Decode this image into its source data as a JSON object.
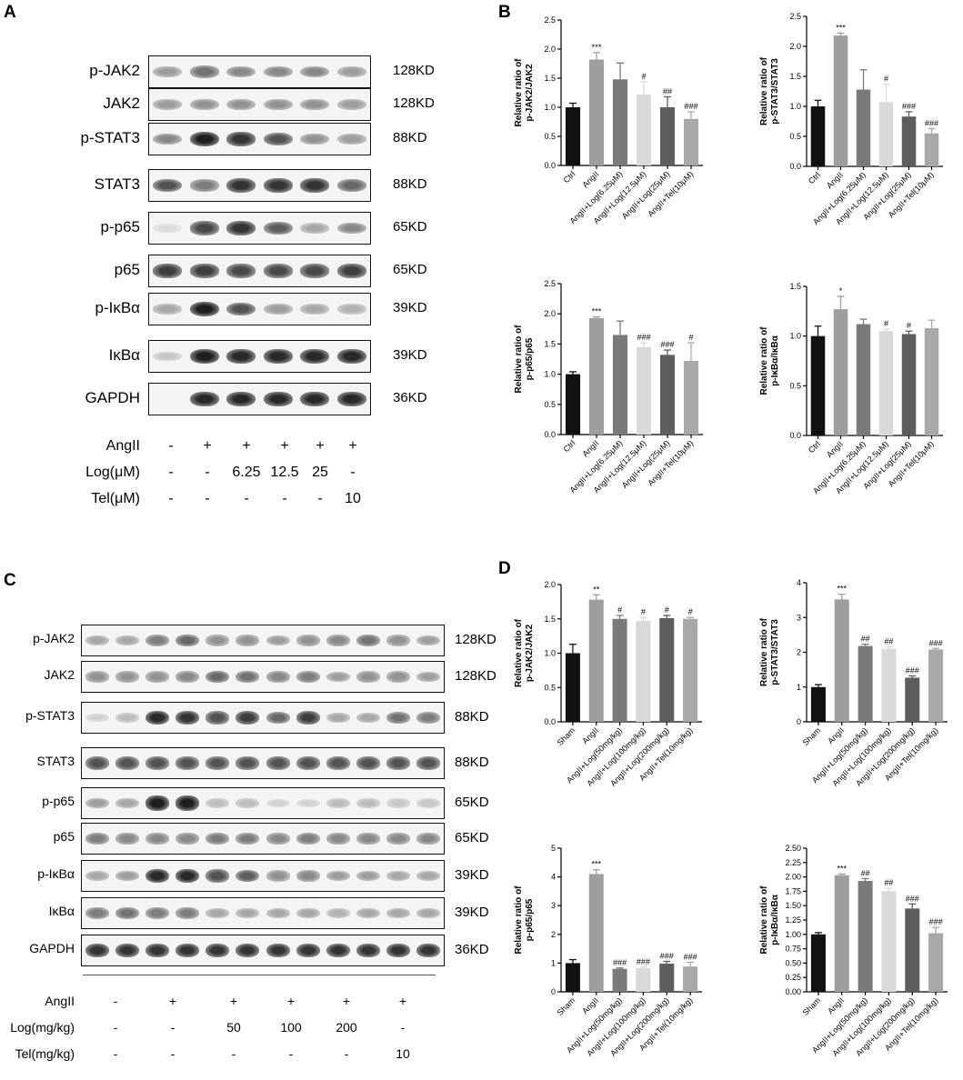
{
  "panels": {
    "A": "A",
    "B": "B",
    "C": "C",
    "D": "D"
  },
  "blotA": {
    "rows": [
      {
        "label": "p-JAK2",
        "kd": "128KD",
        "lanes": [
          0.35,
          0.55,
          0.45,
          0.45,
          0.45,
          0.35
        ]
      },
      {
        "label": "JAK2",
        "kd": "128KD",
        "lanes": [
          0.35,
          0.4,
          0.4,
          0.4,
          0.4,
          0.35
        ]
      },
      {
        "label": "p-STAT3",
        "kd": "88KD",
        "lanes": [
          0.45,
          0.95,
          0.85,
          0.7,
          0.4,
          0.35
        ]
      },
      {
        "label": "STAT3",
        "kd": "88KD",
        "lanes": [
          0.7,
          0.5,
          0.85,
          0.85,
          0.85,
          0.6
        ]
      },
      {
        "label": "p-p65",
        "kd": "65KD",
        "lanes": [
          0.05,
          0.75,
          0.85,
          0.65,
          0.3,
          0.45
        ]
      },
      {
        "label": "p65",
        "kd": "65KD",
        "lanes": [
          0.8,
          0.8,
          0.75,
          0.75,
          0.75,
          0.8
        ]
      },
      {
        "label": "p-IκBα",
        "kd": "39KD",
        "lanes": [
          0.3,
          0.95,
          0.7,
          0.35,
          0.3,
          0.25
        ]
      },
      {
        "label": "IκBα",
        "kd": "39KD",
        "lanes": [
          0.15,
          0.95,
          0.9,
          0.9,
          0.9,
          0.9
        ]
      },
      {
        "label": "GAPDH",
        "kd": "36KD",
        "lanes": [
          0,
          0.9,
          0.9,
          0.9,
          0.9,
          0.9
        ]
      }
    ],
    "conditions": [
      {
        "label": "AngII",
        "values": [
          "-",
          "+",
          "+",
          "+",
          "+",
          "+"
        ]
      },
      {
        "label": "Log(μM)",
        "values": [
          "-",
          "-",
          "6.25",
          "12.5",
          "25",
          "-"
        ]
      },
      {
        "label": "Tel(μM)",
        "values": [
          "-",
          "-",
          "-",
          "-",
          "-",
          "10"
        ]
      }
    ]
  },
  "blotC": {
    "rows": [
      {
        "label": "p-JAK2",
        "kd": "128KD",
        "lanes": [
          0.3,
          0.3,
          0.5,
          0.6,
          0.4,
          0.4,
          0.35,
          0.4,
          0.45,
          0.55,
          0.4,
          0.35
        ]
      },
      {
        "label": "JAK2",
        "kd": "128KD",
        "lanes": [
          0.4,
          0.4,
          0.4,
          0.45,
          0.6,
          0.55,
          0.45,
          0.5,
          0.35,
          0.4,
          0.4,
          0.35
        ]
      },
      {
        "label": "p-STAT3",
        "kd": "88KD",
        "lanes": [
          0.1,
          0.2,
          0.9,
          0.85,
          0.7,
          0.8,
          0.6,
          0.8,
          0.3,
          0.3,
          0.55,
          0.5
        ]
      },
      {
        "label": "STAT3",
        "kd": "88KD",
        "lanes": [
          0.7,
          0.7,
          0.7,
          0.7,
          0.7,
          0.7,
          0.7,
          0.7,
          0.7,
          0.7,
          0.7,
          0.7
        ]
      },
      {
        "label": "p-p65",
        "kd": "65KD",
        "lanes": [
          0.35,
          0.3,
          0.95,
          0.95,
          0.2,
          0.2,
          0.1,
          0.1,
          0.2,
          0.2,
          0.15,
          0.15
        ]
      },
      {
        "label": "p65",
        "kd": "65KD",
        "lanes": [
          0.5,
          0.45,
          0.45,
          0.45,
          0.5,
          0.5,
          0.45,
          0.5,
          0.45,
          0.45,
          0.45,
          0.45
        ]
      },
      {
        "label": "p-IκBα",
        "kd": "39KD",
        "lanes": [
          0.3,
          0.35,
          0.9,
          0.9,
          0.7,
          0.65,
          0.4,
          0.45,
          0.35,
          0.35,
          0.3,
          0.3
        ]
      },
      {
        "label": "IκBα",
        "kd": "39KD",
        "lanes": [
          0.5,
          0.55,
          0.5,
          0.5,
          0.3,
          0.3,
          0.3,
          0.3,
          0.25,
          0.3,
          0.3,
          0.3
        ]
      },
      {
        "label": "GAPDH",
        "kd": "36KD",
        "lanes": [
          0.85,
          0.85,
          0.85,
          0.85,
          0.85,
          0.85,
          0.85,
          0.85,
          0.85,
          0.85,
          0.85,
          0.85
        ]
      }
    ],
    "conditions": [
      {
        "label": "AngII",
        "values": [
          "-",
          "+",
          "+",
          "+",
          "+",
          "+"
        ]
      },
      {
        "label": "Log(mg/kg)",
        "values": [
          "-",
          "-",
          "50",
          "100",
          "200",
          "-"
        ]
      },
      {
        "label": "Tel(mg/kg)",
        "values": [
          "-",
          "-",
          "-",
          "-",
          "-",
          "10"
        ]
      }
    ]
  },
  "chart_data": [
    {
      "type": "bar",
      "ylabel": "Relative ratio of p-JAK2/JAK2",
      "categories": [
        "Ctrl",
        "AngII",
        "AngII+Log(6.25μM)",
        "AngII+Log(12.5μM)",
        "AngII+Log(25μM)",
        "AngII+Tel(10μM)"
      ],
      "values": [
        1.0,
        1.82,
        1.48,
        1.22,
        1.0,
        0.8
      ],
      "errors": [
        0.07,
        0.12,
        0.28,
        0.22,
        0.18,
        0.12
      ],
      "sig": [
        "",
        "***",
        "",
        "#",
        "##",
        "###"
      ],
      "yticks": [
        "0.0",
        "0.5",
        "1.0",
        "1.5",
        "2.0",
        "2.5"
      ],
      "ylim": [
        0,
        2.5
      ],
      "colors": [
        "#111111",
        "#9e9e9e",
        "#7a7a7a",
        "#d9d9d9",
        "#5e5e5e",
        "#a8a8a8"
      ]
    },
    {
      "type": "bar",
      "ylabel": "Relative ratio of p-STAT3/STAT3",
      "categories": [
        "Ctrl",
        "AngII",
        "AngII+Log(6.25μM)",
        "AngII+Log(12.5μM)",
        "AngII+Log(25μM)",
        "AngII+Tel(10μM)"
      ],
      "values": [
        1.0,
        2.18,
        1.28,
        1.07,
        0.83,
        0.55
      ],
      "errors": [
        0.1,
        0.04,
        0.33,
        0.3,
        0.08,
        0.08
      ],
      "sig": [
        "",
        "***",
        "",
        "#",
        "###",
        "###"
      ],
      "yticks": [
        "0.0",
        "0.5",
        "1.0",
        "1.5",
        "2.0",
        "2.5"
      ],
      "ylim": [
        0,
        2.5
      ],
      "colors": [
        "#111111",
        "#9e9e9e",
        "#7a7a7a",
        "#d9d9d9",
        "#5e5e5e",
        "#a8a8a8"
      ]
    },
    {
      "type": "bar",
      "ylabel": "Relative ratio of p-p65/p65",
      "categories": [
        "Ctrl",
        "AngII",
        "AngII+Log(6.25μM)",
        "AngII+Log(12.5μM)",
        "AngII+Log(25μM)",
        "AngII+Tel(10μM)"
      ],
      "values": [
        1.0,
        1.93,
        1.65,
        1.45,
        1.32,
        1.22
      ],
      "errors": [
        0.04,
        0.02,
        0.23,
        0.07,
        0.08,
        0.3
      ],
      "sig": [
        "",
        "***",
        "",
        "###",
        "###",
        "#"
      ],
      "yticks": [
        "0.0",
        "0.5",
        "1.0",
        "1.5",
        "2.0",
        "2.5"
      ],
      "ylim": [
        0,
        2.5
      ],
      "colors": [
        "#111111",
        "#9e9e9e",
        "#7a7a7a",
        "#d9d9d9",
        "#5e5e5e",
        "#a8a8a8"
      ]
    },
    {
      "type": "bar",
      "ylabel": "Relative ratio of p-IκBα/IκBα",
      "categories": [
        "Ctrl",
        "AngII",
        "AngII+Log(6.25μM)",
        "AngII+Log(12.5μM)",
        "AngII+Log(25μM)",
        "AngII+Tel(10μM)"
      ],
      "values": [
        1.0,
        1.27,
        1.12,
        1.05,
        1.02,
        1.08
      ],
      "errors": [
        0.1,
        0.13,
        0.05,
        0.02,
        0.03,
        0.08
      ],
      "sig": [
        "",
        "*",
        "",
        "#",
        "#",
        ""
      ],
      "yticks": [
        "0.0",
        "0.5",
        "1.0",
        "1.5"
      ],
      "ylim": [
        0,
        1.5
      ],
      "colors": [
        "#111111",
        "#9e9e9e",
        "#7a7a7a",
        "#d9d9d9",
        "#5e5e5e",
        "#a8a8a8"
      ]
    },
    {
      "type": "bar",
      "ylabel": "Relative ratio of p-JAK2/JAK2",
      "categories": [
        "Sham",
        "AngII",
        "AngII+Log(50mg/kg)",
        "AngII+Log(100mg/kg)",
        "AngII+Log(200mg/kg)",
        "AngII+Tel(10mg/kg)"
      ],
      "values": [
        1.0,
        1.78,
        1.5,
        1.47,
        1.51,
        1.5
      ],
      "errors": [
        0.13,
        0.07,
        0.05,
        0.05,
        0.04,
        0.02
      ],
      "sig": [
        "",
        "**",
        "#",
        "#",
        "#",
        "#"
      ],
      "yticks": [
        "0.0",
        "0.5",
        "1.0",
        "1.5",
        "2.0"
      ],
      "ylim": [
        0,
        2.0
      ],
      "colors": [
        "#111111",
        "#9e9e9e",
        "#7a7a7a",
        "#d9d9d9",
        "#5e5e5e",
        "#a8a8a8"
      ]
    },
    {
      "type": "bar",
      "ylabel": "Relative ratio of p-STAT3/STAT3",
      "categories": [
        "Sham",
        "AngII",
        "AngII+Log(50mg/kg)",
        "AngII+Log(100mg/kg)",
        "AngII+Log(200mg/kg)",
        "AngII+Tel(10mg/kg)"
      ],
      "values": [
        1.0,
        3.52,
        2.18,
        2.1,
        1.27,
        2.08
      ],
      "errors": [
        0.07,
        0.15,
        0.05,
        0.06,
        0.05,
        0.03
      ],
      "sig": [
        "",
        "***",
        "##",
        "##",
        "###",
        "###"
      ],
      "yticks": [
        "0",
        "1",
        "2",
        "3",
        "4"
      ],
      "ylim": [
        0,
        4
      ],
      "colors": [
        "#111111",
        "#9e9e9e",
        "#7a7a7a",
        "#d9d9d9",
        "#5e5e5e",
        "#a8a8a8"
      ]
    },
    {
      "type": "bar",
      "ylabel": "Relative ratio of p-p65/p65",
      "categories": [
        "Sham",
        "AngII",
        "AngII+Log(50mg/kg)",
        "AngII+Log(100mg/kg)",
        "AngII+Log(200mg/kg)",
        "AngII+Tel(10mg/kg)"
      ],
      "values": [
        1.0,
        4.1,
        0.8,
        0.82,
        0.98,
        0.88
      ],
      "errors": [
        0.12,
        0.15,
        0.03,
        0.04,
        0.08,
        0.15
      ],
      "sig": [
        "",
        "***",
        "###",
        "###",
        "###",
        "###"
      ],
      "yticks": [
        "0",
        "1",
        "2",
        "3",
        "4",
        "5"
      ],
      "ylim": [
        0,
        5
      ],
      "colors": [
        "#111111",
        "#9e9e9e",
        "#7a7a7a",
        "#d9d9d9",
        "#5e5e5e",
        "#a8a8a8"
      ]
    },
    {
      "type": "bar",
      "ylabel": "Relative ratio of p-IκBα/IκBα",
      "categories": [
        "Sham",
        "AngII",
        "AngII+Log(50mg/kg)",
        "AngII+Log(100mg/kg)",
        "AngII+Log(200mg/kg)",
        "AngII+Tel(10mg/kg)"
      ],
      "values": [
        1.0,
        2.03,
        1.93,
        1.75,
        1.45,
        1.02
      ],
      "errors": [
        0.03,
        0.02,
        0.04,
        0.05,
        0.08,
        0.1
      ],
      "sig": [
        "",
        "***",
        "##",
        "##",
        "###",
        "###"
      ],
      "yticks": [
        "0.00",
        "0.25",
        "0.50",
        "0.75",
        "1.00",
        "1.25",
        "1.50",
        "1.75",
        "2.00",
        "2.25",
        "2.50"
      ],
      "ylim": [
        0,
        2.5
      ],
      "colors": [
        "#111111",
        "#9e9e9e",
        "#7a7a7a",
        "#d9d9d9",
        "#5e5e5e",
        "#a8a8a8"
      ]
    }
  ]
}
